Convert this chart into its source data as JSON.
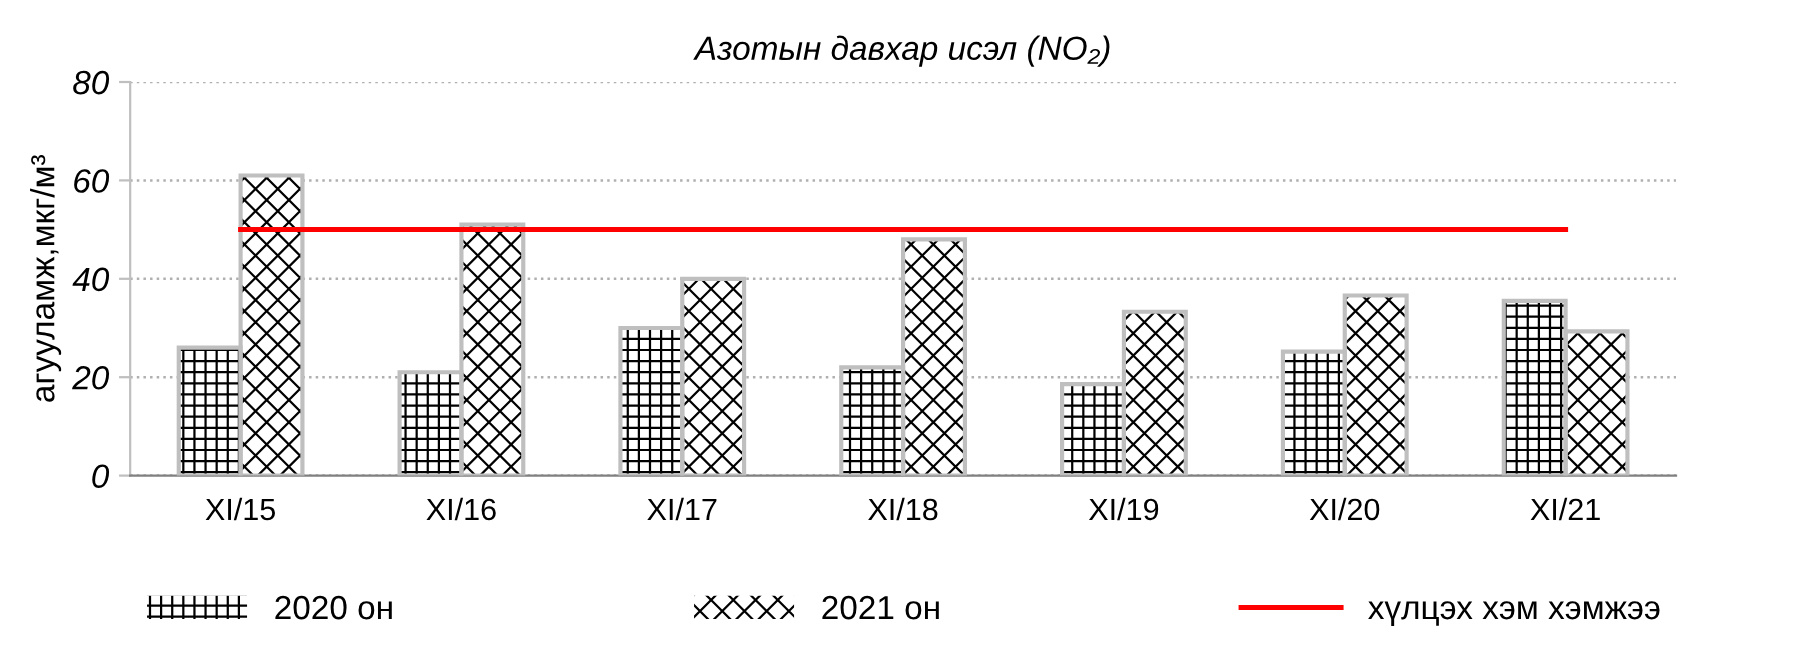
{
  "chart_data": {
    "type": "bar",
    "title": "Азотын давхар исэл (NO₂)",
    "ylabel": "агууламж,мкг/м³",
    "categories": [
      "XI/15",
      "XI/16",
      "XI/17",
      "XI/18",
      "XI/19",
      "XI/20",
      "XI/21"
    ],
    "series": [
      {
        "name": "2020 он",
        "color": "#000000",
        "values": [
          26,
          21,
          30,
          22,
          18.6,
          25.2,
          35.5
        ]
      },
      {
        "name": "2021 он",
        "color": "#000000",
        "values": [
          61,
          51,
          40,
          48,
          33.3,
          36.6,
          29.3
        ]
      },
      {
        "name": "хүлцэх хэм хэмжээ",
        "type": "line",
        "color": "#ff0000",
        "values": [
          50,
          50,
          50,
          50,
          50,
          50,
          50
        ]
      }
    ],
    "ylim": [
      0,
      80
    ],
    "yticks": [
      0,
      20,
      40,
      60,
      80
    ],
    "grid": "y",
    "legend": "bottom",
    "marker": "none",
    "line_style": "solid"
  }
}
